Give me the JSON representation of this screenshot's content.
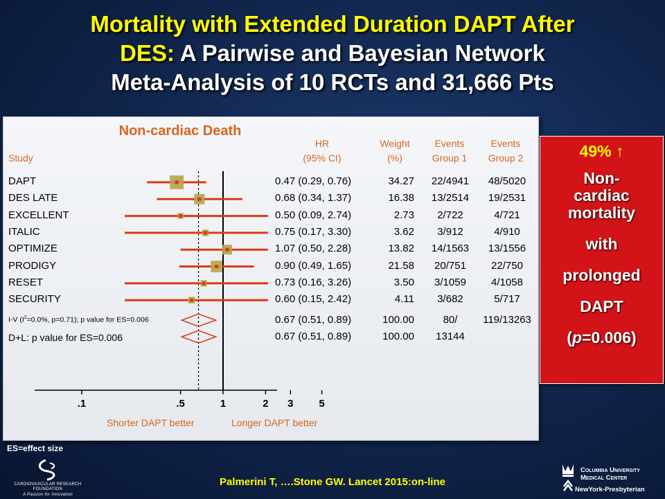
{
  "title": {
    "line1_yellow": "Mortality with Extended Duration DAPT After",
    "line2_yellow": "DES:",
    "line2_white": " A Pairwise and Bayesian Network",
    "line3_white": "Meta-Analysis of 10 RCTs and 31,666 Pts"
  },
  "forest": {
    "panel_title": "Non-cardiac Death",
    "headers": {
      "study": "Study",
      "hr_1": "HR",
      "hr_2": "(95% CI)",
      "weight_1": "Weight",
      "weight_2": "(%)",
      "events1_1": "Events",
      "events1_2": "Group 1",
      "events2_1": "Events",
      "events2_2": "Group 2"
    },
    "footer_label_iv": "I-V (I",
    "footer_label_iv_sup": "2",
    "footer_label_iv_rest": "=0.0%, p=0.71); p value for ES=0.006",
    "footer_label_dl": "D+L: p value for ES=0.006",
    "axis_note_left": "Shorter DAPT better",
    "axis_note_right": "Longer DAPT better"
  },
  "chart_data": {
    "type": "forest",
    "xscale": "log",
    "xticks": [
      0.1,
      0.5,
      1,
      2,
      3,
      5
    ],
    "xtick_labels": [
      ".1",
      ".5",
      "1",
      "2",
      "3",
      "5"
    ],
    "reference_line": 1,
    "pooled_dashed_line": 0.67,
    "studies": [
      {
        "name": "DAPT",
        "hr": 0.47,
        "lo": 0.29,
        "hi": 0.76,
        "ci": "0.47 (0.29, 0.76)",
        "weight": "34.27",
        "w": 34.27,
        "ev1": "22/4941",
        "ev2": "48/5020"
      },
      {
        "name": "DES LATE",
        "hr": 0.68,
        "lo": 0.34,
        "hi": 1.37,
        "ci": "0.68 (0.34, 1.37)",
        "weight": "16.38",
        "w": 16.38,
        "ev1": "13/2514",
        "ev2": "19/2531"
      },
      {
        "name": "EXCELLENT",
        "hr": 0.5,
        "lo": 0.09,
        "hi": 2.74,
        "ci": "0.50 (0.09, 2.74)",
        "weight": "2.73",
        "w": 2.73,
        "ev1": "2/722",
        "ev2": "4/721"
      },
      {
        "name": "ITALIC",
        "hr": 0.75,
        "lo": 0.17,
        "hi": 3.3,
        "ci": "0.75 (0.17, 3.30)",
        "weight": "3.62",
        "w": 3.62,
        "ev1": "3/912",
        "ev2": "4/910"
      },
      {
        "name": "OPTIMIZE",
        "hr": 1.07,
        "lo": 0.5,
        "hi": 2.28,
        "ci": "1.07 (0.50, 2.28)",
        "weight": "13.82",
        "w": 13.82,
        "ev1": "14/1563",
        "ev2": "13/1556"
      },
      {
        "name": "PRODIGY",
        "hr": 0.9,
        "lo": 0.49,
        "hi": 1.65,
        "ci": "0.90 (0.49, 1.65)",
        "weight": "21.58",
        "w": 21.58,
        "ev1": "20/751",
        "ev2": "22/750"
      },
      {
        "name": "RESET",
        "hr": 0.73,
        "lo": 0.16,
        "hi": 3.26,
        "ci": "0.73 (0.16, 3.26)",
        "weight": "3.50",
        "w": 3.5,
        "ev1": "3/1059",
        "ev2": "4/1058"
      },
      {
        "name": "SECURITY",
        "hr": 0.6,
        "lo": 0.15,
        "hi": 2.42,
        "ci": "0.60 (0.15, 2.42)",
        "weight": "4.11",
        "w": 4.11,
        "ev1": "3/682",
        "ev2": "5/717"
      }
    ],
    "pooled": [
      {
        "name": "I-V",
        "hr": 0.67,
        "lo": 0.51,
        "hi": 0.89,
        "ci": "0.67 (0.51, 0.89)",
        "weight": "100.00",
        "ev1": "80/",
        "ev2": "119/13263"
      },
      {
        "name": "D+L",
        "hr": 0.67,
        "lo": 0.51,
        "hi": 0.89,
        "ci": "0.67 (0.51, 0.89)",
        "weight": "100.00",
        "ev1": "13144",
        "ev2": ""
      }
    ],
    "colors": {
      "ci_line": "#dc3a14",
      "box": "#b5a44a",
      "point": "#dc3a14",
      "diamond": "#dc3a14",
      "axis": "#000000"
    }
  },
  "callout": {
    "pct": "49% ↑",
    "lines": [
      "Non-",
      "cardiac",
      "mortality",
      "with",
      "prolonged",
      "DAPT"
    ],
    "p_open": "(",
    "p_italic": "p",
    "p_rest": "=0.006)"
  },
  "es_note": "ES=effect size",
  "citation": "Palmerini T, ….Stone GW. Lancet 2015:on-line",
  "logos": {
    "crf_name_1": "CARDIOVASCULAR RESEARCH",
    "crf_name_2": "FOUNDATION",
    "crf_tagline": "A Passion for Innovation",
    "cumc_1": "Columbia University",
    "cumc_2": "Medical Center",
    "nyp": "NewYork-Presbyterian"
  }
}
